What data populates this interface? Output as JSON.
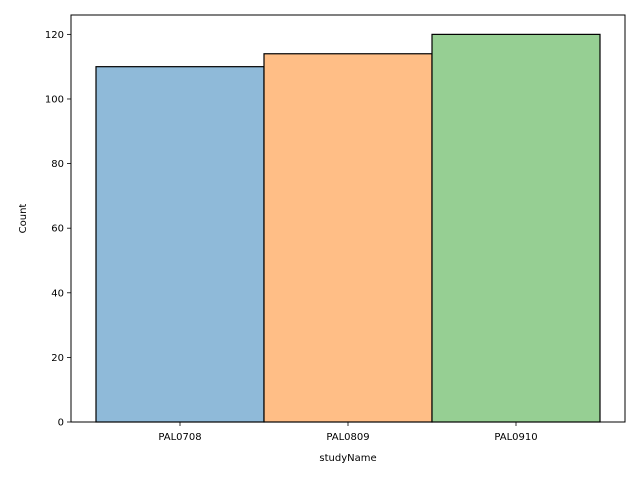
{
  "chart_data": {
    "type": "bar",
    "title": "",
    "xlabel": "studyName",
    "ylabel": "Count",
    "categories": [
      "PAL0708",
      "PAL0809",
      "PAL0910"
    ],
    "values": [
      110,
      114,
      120
    ],
    "colors": [
      "#8fbad9",
      "#ffbe86",
      "#96cf93"
    ],
    "edge_color": "#000000",
    "ylim": [
      0,
      126
    ],
    "yticks": [
      0,
      20,
      40,
      60,
      80,
      100,
      120
    ],
    "grid": false,
    "legend": "none"
  }
}
